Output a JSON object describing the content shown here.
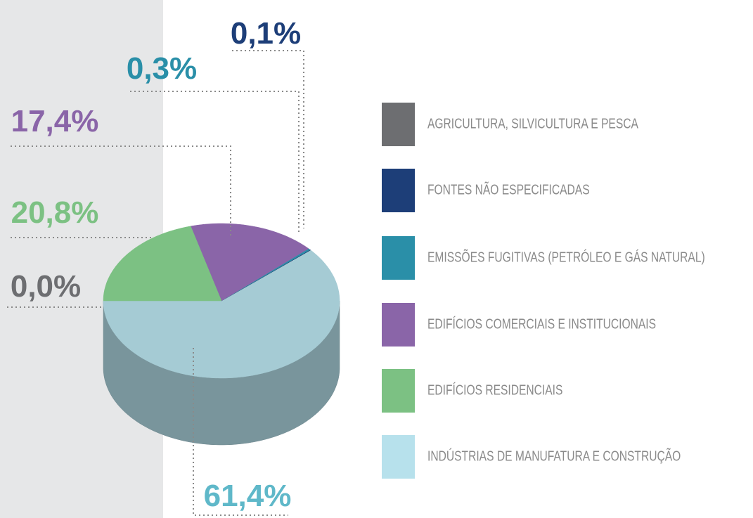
{
  "chart_data": {
    "type": "pie",
    "categories": [
      "AGRICULTURA, SILVICULTURA E PESCA",
      "FONTES NÃO ESPECIFICADAS",
      "EMISSÕES FUGITIVAS (PETRÓLEO E GÁS NATURAL)",
      "EDIFÍCIOS COMERCIAIS E INSTITUCIONAIS",
      "EDIFÍCIOS RESIDENCIAIS",
      "INDÚSTRIAS DE MANUFATURA E CONSTRUÇÃO"
    ],
    "values": [
      0.0,
      0.1,
      0.3,
      17.4,
      20.8,
      61.4
    ],
    "value_labels": [
      "0,0%",
      "0,1%",
      "0,3%",
      "17,4%",
      "20,8%",
      "61,4%"
    ],
    "colors": [
      "#6d6e71",
      "#1d3e78",
      "#2a8fa8",
      "#8a65a8",
      "#7cc183",
      "#b7e1ec"
    ],
    "label_colors": [
      "#6d6e71",
      "#1d3e78",
      "#2a8fa8",
      "#8a65a8",
      "#7cc183",
      "#5fb8c9"
    ]
  }
}
